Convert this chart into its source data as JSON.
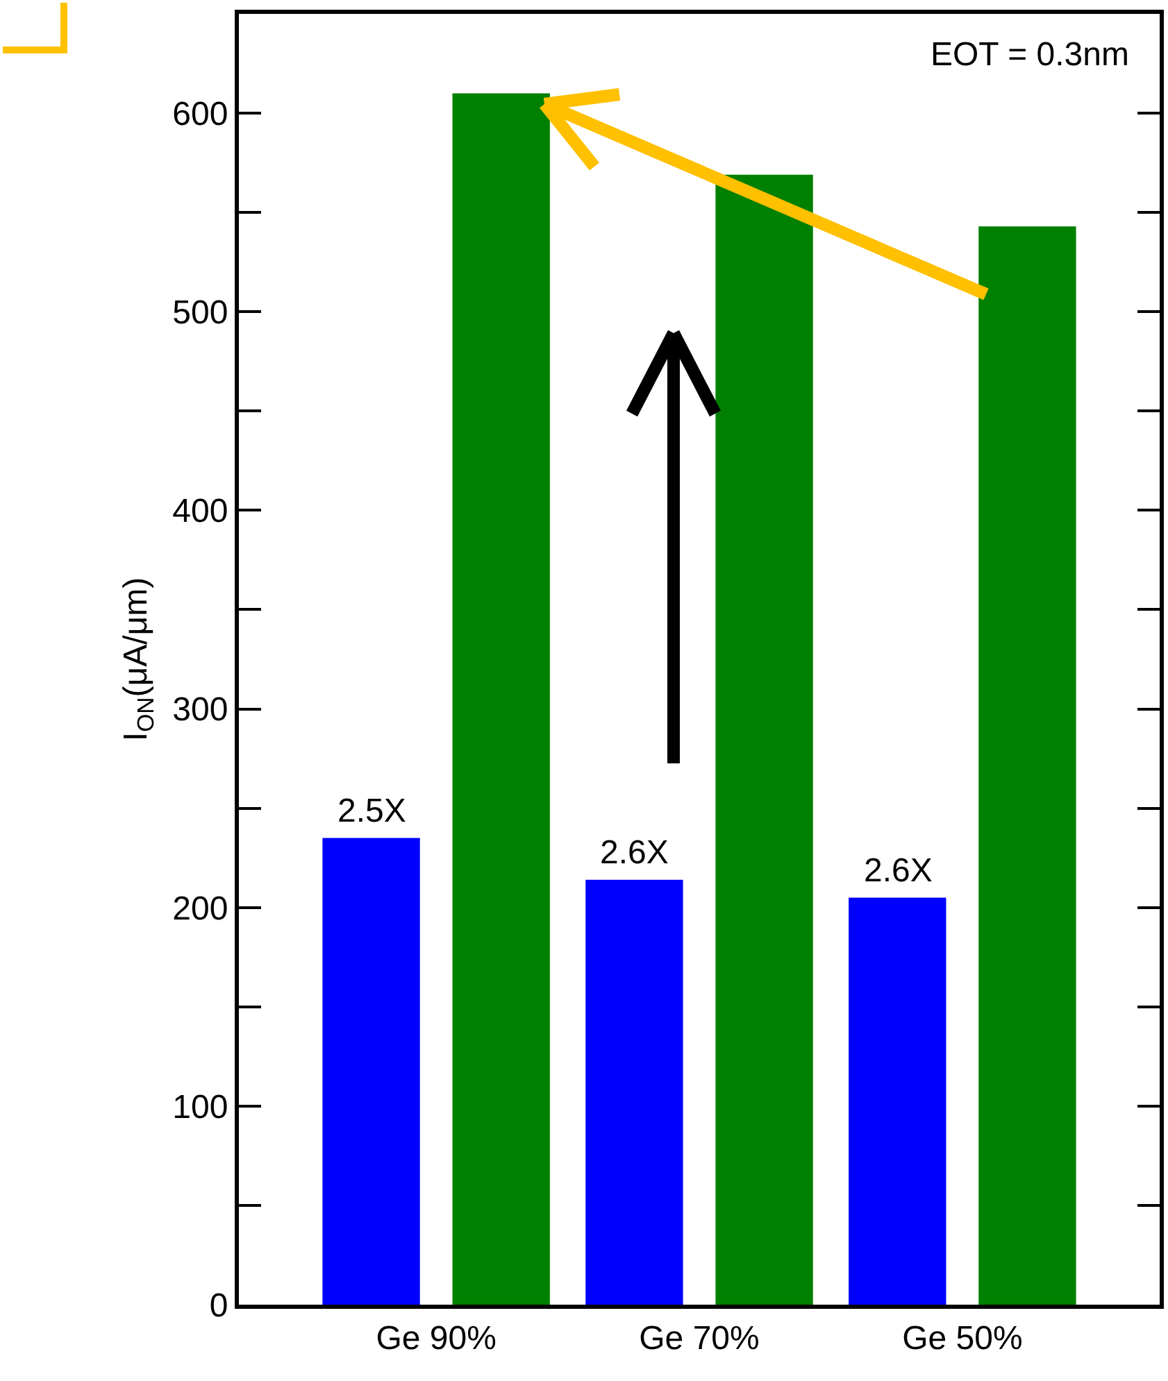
{
  "chart_data": {
    "type": "bar",
    "ylabel": "I$_{ON}$(μA/μm)",
    "categories": [
      "Ge 90%",
      "Ge 70%",
      "Ge 50%"
    ],
    "series": [
      {
        "color": "#0000ff",
        "values": [
          235,
          214,
          205
        ]
      },
      {
        "color": "#008000",
        "values": [
          610,
          569,
          543
        ]
      }
    ],
    "ylim": [
      0,
      650
    ],
    "yticks": [
      0,
      {
        "value": 50,
        "label": null
      },
      100,
      {
        "value": 150,
        "label": null
      },
      200,
      {
        "value": 250,
        "label": null
      },
      300,
      {
        "value": 350,
        "label": null
      },
      400,
      {
        "value": 450,
        "label": null
      },
      500,
      {
        "value": 550,
        "label": null
      },
      600
    ],
    "annotations": [
      "EOT = 0.3nm",
      "2.5X",
      "2.6X",
      "2.6X"
    ]
  }
}
